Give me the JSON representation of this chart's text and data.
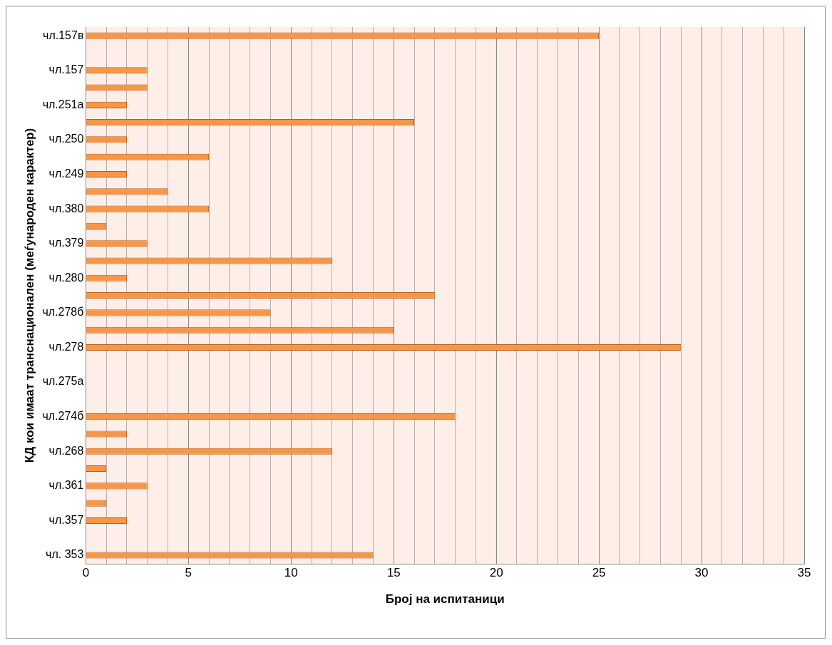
{
  "chart_data": {
    "type": "bar",
    "orientation": "horizontal",
    "xlabel": "Број на испитаници",
    "ylabel": "КД кои имаат транснационален (меѓународен карактер)",
    "categories": [
      "чл.157в",
      null,
      "чл.157",
      null,
      "чл.251а",
      null,
      "чл.250",
      null,
      "чл.249",
      null,
      "чл.380",
      null,
      "чл.379",
      null,
      "чл.280",
      null,
      "чл.278б",
      null,
      "чл.278",
      null,
      "чл.275а",
      null,
      "чл.274б",
      null,
      "чл.268",
      null,
      "чл.361",
      null,
      "чл.357",
      null,
      "чл. 353"
    ],
    "values": [
      25,
      null,
      3,
      3,
      2,
      16,
      2,
      6,
      2,
      4,
      6,
      1,
      3,
      12,
      2,
      17,
      9,
      15,
      29,
      null,
      null,
      null,
      18,
      2,
      12,
      1,
      3,
      1,
      2,
      null,
      14
    ],
    "color": "#f79646",
    "xlim": [
      0,
      35
    ],
    "xticks": [
      0,
      {
        "value": 1,
        "label": null
      },
      {
        "value": 2,
        "label": null
      },
      {
        "value": 3,
        "label": null
      },
      {
        "value": 4,
        "label": null
      },
      5,
      {
        "value": 6,
        "label": null
      },
      {
        "value": 7,
        "label": null
      },
      {
        "value": 8,
        "label": null
      },
      {
        "value": 9,
        "label": null
      },
      10,
      {
        "value": 11,
        "label": null
      },
      {
        "value": 12,
        "label": null
      },
      {
        "value": 13,
        "label": null
      },
      {
        "value": 14,
        "label": null
      },
      15,
      {
        "value": 16,
        "label": null
      },
      {
        "value": 17,
        "label": null
      },
      {
        "value": 18,
        "label": null
      },
      {
        "value": 19,
        "label": null
      },
      20,
      {
        "value": 21,
        "label": null
      },
      {
        "value": 22,
        "label": null
      },
      {
        "value": 23,
        "label": null
      },
      {
        "value": 24,
        "label": null
      },
      25,
      {
        "value": 26,
        "label": null
      },
      {
        "value": 27,
        "label": null
      },
      {
        "value": 28,
        "label": null
      },
      {
        "value": 29,
        "label": null
      },
      30,
      {
        "value": 31,
        "label": null
      },
      {
        "value": 32,
        "label": null
      },
      {
        "value": 33,
        "label": null
      },
      {
        "value": 34,
        "label": null
      },
      35
    ],
    "grid": "x",
    "legend": false
  }
}
